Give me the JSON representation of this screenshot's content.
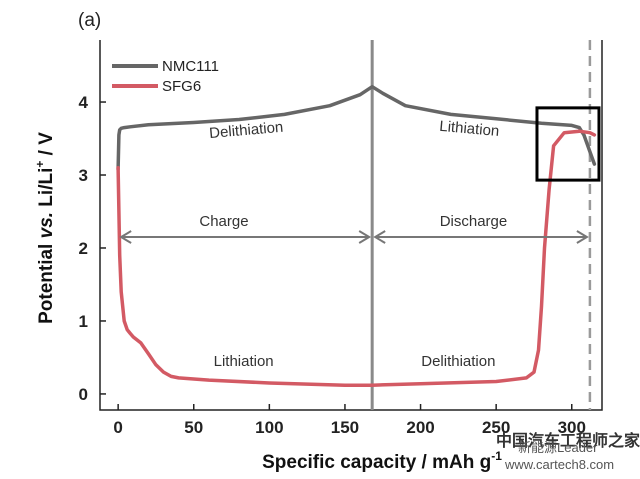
{
  "panel_label": "(a)",
  "colors": {
    "nmc": "#666666",
    "sfg": "#d35a64",
    "axis": "#222222",
    "divider": "#8a8a8a",
    "dashed": "#9a9a9a",
    "arrow": "#777777",
    "box": "#000000",
    "anno_dark": "#333333",
    "anno_red": "#c8505a"
  },
  "watermark": {
    "site_cn": "中国汽车工程师之家",
    "source": "新能源Leader",
    "url": "www.cartech8.com"
  },
  "chart_data": {
    "type": "line",
    "title": "",
    "xlabel": "Specific capacity / mAh g",
    "xlabel_sup": "-1",
    "ylabel_parts": [
      "Potential ",
      "vs.",
      " Li/Li",
      "+",
      " / V"
    ],
    "xlim": [
      -12,
      320
    ],
    "ylim": [
      -0.22,
      4.85
    ],
    "xticks": [
      0,
      50,
      100,
      150,
      200,
      250,
      300
    ],
    "yticks": [
      0,
      1,
      2,
      3,
      4
    ],
    "grid": false,
    "legend": {
      "position": "top-left",
      "entries": [
        "NMC111",
        "SFG6"
      ]
    },
    "divider_x": 168,
    "end_x": 312,
    "series": [
      {
        "name": "NMC111",
        "x": [
          0,
          0.5,
          1,
          2,
          4,
          8,
          20,
          50,
          80,
          110,
          140,
          160,
          168,
          175,
          190,
          220,
          250,
          280,
          300,
          305,
          308,
          312,
          315
        ],
        "y": [
          3.08,
          3.55,
          3.62,
          3.64,
          3.65,
          3.66,
          3.69,
          3.72,
          3.76,
          3.83,
          3.95,
          4.1,
          4.21,
          4.12,
          3.95,
          3.83,
          3.77,
          3.71,
          3.68,
          3.65,
          3.55,
          3.32,
          3.15
        ]
      },
      {
        "name": "SFG6",
        "x": [
          0,
          0.5,
          1,
          2,
          4,
          6,
          8,
          10,
          15,
          20,
          25,
          30,
          35,
          40,
          60,
          100,
          150,
          168,
          200,
          250,
          270,
          275,
          278,
          280,
          282,
          285,
          288,
          295,
          305,
          312,
          315
        ],
        "y": [
          3.1,
          2.5,
          1.9,
          1.4,
          1.0,
          0.88,
          0.83,
          0.78,
          0.7,
          0.55,
          0.4,
          0.3,
          0.24,
          0.22,
          0.19,
          0.15,
          0.12,
          0.12,
          0.14,
          0.17,
          0.22,
          0.3,
          0.6,
          1.2,
          2.0,
          2.8,
          3.4,
          3.58,
          3.6,
          3.58,
          3.55
        ]
      }
    ],
    "annotations": [
      {
        "text": "Delithiation",
        "x": 85,
        "y": 3.55,
        "series": "NMC111",
        "angle": -5
      },
      {
        "text": "Lithiation",
        "x": 232,
        "y": 3.57,
        "series": "NMC111",
        "angle": 5
      },
      {
        "text": "Charge",
        "x": 70,
        "y": 2.3,
        "series": "arrow",
        "angle": 0
      },
      {
        "text": "Discharge",
        "x": 235,
        "y": 2.3,
        "series": "arrow",
        "angle": 0
      },
      {
        "text": "Lithiation",
        "x": 83,
        "y": 0.38,
        "series": "SFG6",
        "angle": 0
      },
      {
        "text": "Delithiation",
        "x": 225,
        "y": 0.38,
        "series": "SFG6",
        "angle": 0
      }
    ],
    "arrows": [
      {
        "from_x": 0,
        "to_x": 168,
        "y": 2.15
      },
      {
        "from_x": 168,
        "to_x": 312,
        "y": 2.15
      }
    ],
    "highlight_box": {
      "x": [
        277,
        318
      ],
      "y": [
        2.93,
        3.92
      ]
    }
  }
}
